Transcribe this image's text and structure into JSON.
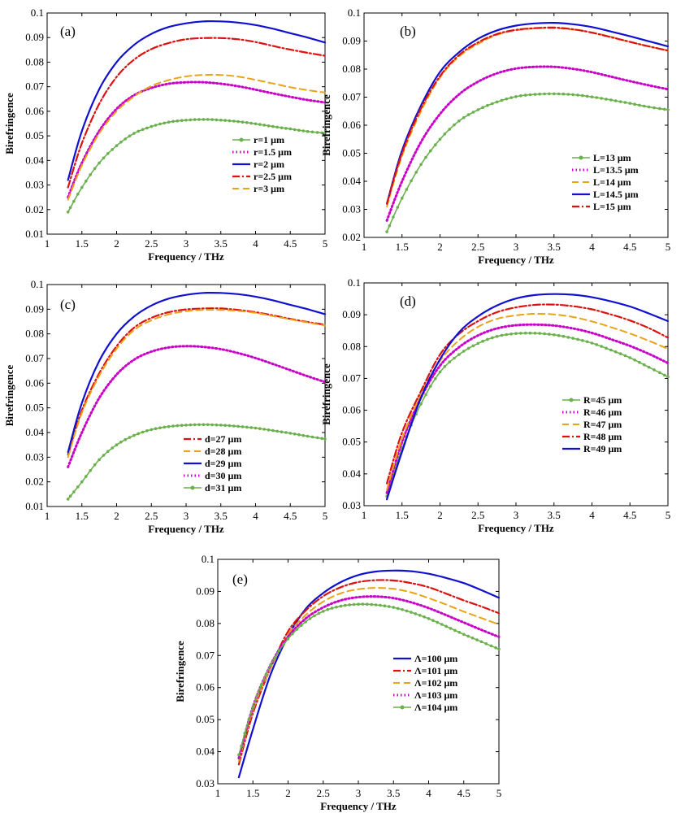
{
  "colors": {
    "green": "#6ab04c",
    "magenta": "#c800c8",
    "blue": "#1010d0",
    "red": "#dd1111",
    "orange": "#e8a317"
  },
  "chart_data": [
    {
      "panel": "a",
      "type": "line",
      "title": "(a)",
      "xlabel": "Frequency / THz",
      "ylabel": "Birefringence",
      "xlim": [
        1,
        5
      ],
      "ylim": [
        0.01,
        0.1
      ],
      "xticks": [
        "1",
        "1.5",
        "2",
        "2.5",
        "3",
        "3.5",
        "4",
        "4.5",
        "5"
      ],
      "yticks": [
        "0.01",
        "0.02",
        "0.03",
        "0.04",
        "0.05",
        "0.06",
        "0.07",
        "0.08",
        "0.09",
        "0.1"
      ],
      "legend_position": "right-middle",
      "x": [
        1.3,
        1.5,
        1.75,
        2,
        2.25,
        2.5,
        2.75,
        3,
        3.25,
        3.5,
        3.75,
        4,
        4.25,
        4.5,
        4.75,
        5
      ],
      "series": [
        {
          "name": "r=1 μm",
          "style": "green-dots",
          "values": [
            0.019,
            0.029,
            0.039,
            0.046,
            0.051,
            0.0538,
            0.0556,
            0.0564,
            0.0567,
            0.0564,
            0.0558,
            0.0549,
            0.0538,
            0.0528,
            0.0518,
            0.0511
          ]
        },
        {
          "name": "r=1.5 μm",
          "style": "magenta-dots",
          "values": [
            0.025,
            0.039,
            0.052,
            0.061,
            0.0665,
            0.0695,
            0.0712,
            0.0718,
            0.0718,
            0.0712,
            0.0702,
            0.0688,
            0.0673,
            0.0659,
            0.0646,
            0.0636
          ]
        },
        {
          "name": "r=2 μm",
          "style": "blue-solid",
          "values": [
            0.032,
            0.052,
            0.069,
            0.08,
            0.087,
            0.0915,
            0.0943,
            0.0958,
            0.0966,
            0.0966,
            0.0961,
            0.0951,
            0.0936,
            0.0918,
            0.09,
            0.088
          ]
        },
        {
          "name": "r=2.5 μm",
          "style": "red-dashdot",
          "values": [
            0.029,
            0.047,
            0.063,
            0.074,
            0.081,
            0.0853,
            0.0878,
            0.0893,
            0.0898,
            0.0898,
            0.0893,
            0.0882,
            0.0866,
            0.0851,
            0.0838,
            0.0826
          ]
        },
        {
          "name": "r=3 μm",
          "style": "orange-dash",
          "values": [
            0.024,
            0.038,
            0.051,
            0.06,
            0.066,
            0.0703,
            0.0727,
            0.0742,
            0.0748,
            0.0748,
            0.0741,
            0.0728,
            0.0713,
            0.0698,
            0.0686,
            0.0676
          ]
        }
      ]
    },
    {
      "panel": "b",
      "type": "line",
      "title": "(b)",
      "xlabel": "Frequency / THz",
      "ylabel": "Birefringence",
      "xlim": [
        1,
        5
      ],
      "ylim": [
        0.02,
        0.1
      ],
      "xticks": [
        "1",
        "1.5",
        "2",
        "2.5",
        "3",
        "3.5",
        "4",
        "4.5",
        "5"
      ],
      "yticks": [
        "0.02",
        "0.03",
        "0.04",
        "0.05",
        "0.06",
        "0.07",
        "0.08",
        "0.09",
        "0.1"
      ],
      "legend_position": "right-lower",
      "x": [
        1.3,
        1.5,
        1.75,
        2,
        2.25,
        2.5,
        2.75,
        3,
        3.25,
        3.5,
        3.75,
        4,
        4.25,
        4.5,
        4.75,
        5
      ],
      "series": [
        {
          "name": "L=13 μm",
          "style": "green-dots",
          "values": [
            0.022,
            0.034,
            0.046,
            0.055,
            0.0615,
            0.0655,
            0.0683,
            0.0702,
            0.071,
            0.0712,
            0.0709,
            0.0701,
            0.069,
            0.0678,
            0.0665,
            0.0655
          ]
        },
        {
          "name": "L=13.5 μm",
          "style": "magenta-dots",
          "values": [
            0.026,
            0.04,
            0.054,
            0.064,
            0.071,
            0.0755,
            0.0785,
            0.0802,
            0.0808,
            0.0808,
            0.0801,
            0.0789,
            0.0773,
            0.0757,
            0.0742,
            0.0728
          ]
        },
        {
          "name": "L=14 μm",
          "style": "orange-dash",
          "values": [
            0.031,
            0.049,
            0.065,
            0.077,
            0.0845,
            0.089,
            0.0922,
            0.0938,
            0.0945,
            0.0946,
            0.0941,
            0.0931,
            0.0915,
            0.0897,
            0.0881,
            0.0866
          ]
        },
        {
          "name": "L=14.5 μm",
          "style": "blue-solid",
          "values": [
            0.032,
            0.051,
            0.067,
            0.079,
            0.086,
            0.0908,
            0.0938,
            0.0955,
            0.0963,
            0.0965,
            0.096,
            0.095,
            0.0934,
            0.0917,
            0.0899,
            0.0881
          ]
        },
        {
          "name": "L=15 μm",
          "style": "red-dashdot",
          "values": [
            0.032,
            0.05,
            0.066,
            0.0775,
            0.085,
            0.0895,
            0.0925,
            0.094,
            0.0946,
            0.0948,
            0.0942,
            0.093,
            0.0914,
            0.0897,
            0.0881,
            0.0866
          ]
        }
      ]
    },
    {
      "panel": "c",
      "type": "line",
      "title": "(c)",
      "xlabel": "Frequency / THz",
      "ylabel": "Birefringence",
      "xlim": [
        1,
        5
      ],
      "ylim": [
        0.01,
        0.1
      ],
      "xticks": [
        "1",
        "1.5",
        "2",
        "2.5",
        "3",
        "3.5",
        "4",
        "4.5",
        "5"
      ],
      "yticks": [
        "0.01",
        "0.02",
        "0.03",
        "0.04",
        "0.05",
        "0.06",
        "0.07",
        "0.08",
        "0.09",
        "0.1"
      ],
      "legend_position": "bottom-middle",
      "x": [
        1.3,
        1.5,
        1.75,
        2,
        2.25,
        2.5,
        2.75,
        3,
        3.25,
        3.5,
        3.75,
        4,
        4.25,
        4.5,
        4.75,
        5
      ],
      "series": [
        {
          "name": "d=27 μm",
          "style": "red-dashdot",
          "values": [
            0.031,
            0.049,
            0.064,
            0.075,
            0.0825,
            0.0865,
            0.0888,
            0.0899,
            0.0903,
            0.0903,
            0.0897,
            0.0888,
            0.0875,
            0.0861,
            0.0848,
            0.0837
          ]
        },
        {
          "name": "d=28 μm",
          "style": "orange-dash",
          "values": [
            0.03,
            0.048,
            0.063,
            0.074,
            0.0815,
            0.0855,
            0.0879,
            0.0892,
            0.0897,
            0.0897,
            0.0893,
            0.0885,
            0.0872,
            0.0859,
            0.0846,
            0.0834
          ]
        },
        {
          "name": "d=29 μm",
          "style": "blue-solid",
          "values": [
            0.032,
            0.052,
            0.069,
            0.08,
            0.087,
            0.0915,
            0.0943,
            0.0958,
            0.0966,
            0.0966,
            0.0961,
            0.0951,
            0.0936,
            0.0918,
            0.09,
            0.088
          ]
        },
        {
          "name": "d=30 μm",
          "style": "magenta-dots",
          "values": [
            0.026,
            0.04,
            0.054,
            0.0635,
            0.0695,
            0.0728,
            0.0745,
            0.075,
            0.0747,
            0.0738,
            0.0722,
            0.0702,
            0.0678,
            0.0653,
            0.0628,
            0.0605
          ]
        },
        {
          "name": "d=31 μm",
          "style": "green-dots",
          "values": [
            0.013,
            0.02,
            0.029,
            0.035,
            0.0388,
            0.0412,
            0.0424,
            0.043,
            0.0432,
            0.043,
            0.0425,
            0.0418,
            0.0408,
            0.0397,
            0.0385,
            0.0374
          ]
        }
      ]
    },
    {
      "panel": "d",
      "type": "line",
      "title": "(d)",
      "xlabel": "Frequency / THz",
      "ylabel": "Birefringence",
      "xlim": [
        1,
        5
      ],
      "ylim": [
        0.03,
        0.1
      ],
      "xticks": [
        "1",
        "1.5",
        "2",
        "2.5",
        "3",
        "3.5",
        "4",
        "4.5",
        "5"
      ],
      "yticks": [
        "0.03",
        "0.04",
        "0.05",
        "0.06",
        "0.07",
        "0.08",
        "0.09",
        "0.1"
      ],
      "legend_position": "right-middle",
      "x": [
        1.3,
        1.5,
        1.75,
        2,
        2.25,
        2.5,
        2.75,
        3,
        3.25,
        3.5,
        3.75,
        4,
        4.25,
        4.5,
        4.75,
        5
      ],
      "series": [
        {
          "name": "R=45 μm",
          "style": "green-dots",
          "values": [
            0.033,
            0.048,
            0.062,
            0.072,
            0.0775,
            0.081,
            0.0832,
            0.0841,
            0.0842,
            0.0837,
            0.0826,
            0.0811,
            0.0789,
            0.0765,
            0.0735,
            0.0705
          ]
        },
        {
          "name": "R=46 μm",
          "style": "magenta-dots",
          "values": [
            0.034,
            0.05,
            0.064,
            0.074,
            0.0798,
            0.0835,
            0.0857,
            0.0867,
            0.0869,
            0.0866,
            0.0857,
            0.0843,
            0.0823,
            0.0802,
            0.0777,
            0.0748
          ]
        },
        {
          "name": "R=47 μm",
          "style": "orange-dash",
          "values": [
            0.035,
            0.051,
            0.065,
            0.0755,
            0.082,
            0.0862,
            0.0887,
            0.0898,
            0.0903,
            0.0901,
            0.0893,
            0.0879,
            0.0861,
            0.0841,
            0.0818,
            0.0793
          ]
        },
        {
          "name": "R=48 μm",
          "style": "red-dashdot",
          "values": [
            0.037,
            0.053,
            0.066,
            0.0775,
            0.084,
            0.088,
            0.0908,
            0.0923,
            0.0931,
            0.0932,
            0.0927,
            0.0917,
            0.0901,
            0.0882,
            0.0858,
            0.0828
          ]
        },
        {
          "name": "R=49 μm",
          "style": "blue-solid",
          "values": [
            0.032,
            0.047,
            0.064,
            0.076,
            0.0845,
            0.0895,
            0.0929,
            0.0951,
            0.0962,
            0.0965,
            0.0963,
            0.0955,
            0.0942,
            0.0926,
            0.0904,
            0.088
          ]
        }
      ]
    },
    {
      "panel": "e",
      "type": "line",
      "title": "(e)",
      "xlabel": "Frequency / THz",
      "ylabel": "Birefringence",
      "xlim": [
        1,
        5
      ],
      "ylim": [
        0.03,
        0.1
      ],
      "xticks": [
        "1",
        "1.5",
        "2",
        "2.5",
        "3",
        "3.5",
        "4",
        "4.5",
        "5"
      ],
      "yticks": [
        "0.03",
        "0.04",
        "0.05",
        "0.06",
        "0.07",
        "0.08",
        "0.09",
        "0.1"
      ],
      "legend_position": "right-middle",
      "x": [
        1.3,
        1.5,
        1.75,
        2,
        2.25,
        2.5,
        2.75,
        3,
        3.25,
        3.5,
        3.75,
        4,
        4.25,
        4.5,
        4.75,
        5
      ],
      "series": [
        {
          "name": "Λ=100 μm",
          "style": "blue-solid",
          "values": [
            0.032,
            0.047,
            0.064,
            0.076,
            0.0845,
            0.0895,
            0.0929,
            0.0951,
            0.0962,
            0.0965,
            0.0963,
            0.0955,
            0.0942,
            0.0926,
            0.0904,
            0.088
          ]
        },
        {
          "name": "Λ=101 μm",
          "style": "red-dashdot",
          "values": [
            0.036,
            0.052,
            0.066,
            0.0775,
            0.084,
            0.0885,
            0.0913,
            0.0929,
            0.0935,
            0.0934,
            0.0926,
            0.0913,
            0.0893,
            0.0872,
            0.0853,
            0.0832
          ]
        },
        {
          "name": "Λ=102 μm",
          "style": "orange-dash",
          "values": [
            0.037,
            0.053,
            0.066,
            0.0765,
            0.0826,
            0.0868,
            0.0894,
            0.0907,
            0.0911,
            0.0908,
            0.0897,
            0.0879,
            0.0859,
            0.0837,
            0.0817,
            0.0797
          ]
        },
        {
          "name": "Λ=103 μm",
          "style": "magenta-dots",
          "values": [
            0.038,
            0.054,
            0.067,
            0.0758,
            0.0815,
            0.085,
            0.0872,
            0.0882,
            0.0884,
            0.0879,
            0.0866,
            0.0848,
            0.0826,
            0.0803,
            0.078,
            0.0758
          ]
        },
        {
          "name": "Λ=104 μm",
          "style": "green-dots",
          "values": [
            0.039,
            0.054,
            0.067,
            0.0752,
            0.0805,
            0.0838,
            0.0854,
            0.086,
            0.0858,
            0.085,
            0.0835,
            0.0815,
            0.0791,
            0.0766,
            0.0743,
            0.072
          ]
        }
      ]
    }
  ]
}
